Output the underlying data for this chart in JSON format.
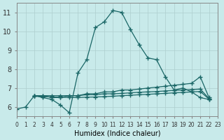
{
  "xlabel": "Humidex (Indice chaleur)",
  "bg_color": "#c8eaea",
  "grid_color": "#aecece",
  "line_color": "#1a6666",
  "xlim": [
    0,
    23
  ],
  "ylim": [
    5.5,
    11.5
  ],
  "xticks": [
    0,
    1,
    2,
    3,
    4,
    5,
    6,
    7,
    8,
    9,
    10,
    11,
    12,
    13,
    14,
    15,
    16,
    17,
    18,
    19,
    20,
    21,
    22,
    23
  ],
  "yticks": [
    6,
    7,
    8,
    9,
    10,
    11
  ],
  "series": [
    {
      "x": [
        0,
        1,
        2,
        3,
        4,
        5,
        6,
        7,
        8,
        9,
        10,
        11,
        12,
        13,
        14,
        15,
        16,
        17,
        18,
        19,
        20,
        21,
        22
      ],
      "y": [
        5.9,
        6.0,
        6.6,
        6.5,
        6.4,
        6.1,
        5.7,
        7.8,
        8.5,
        10.2,
        10.5,
        11.1,
        11.0,
        10.1,
        9.3,
        8.6,
        8.5,
        7.6,
        6.9,
        7.0,
        6.8,
        6.5,
        6.4
      ]
    },
    {
      "x": [
        2,
        3,
        4,
        5,
        6,
        7,
        8,
        9,
        10,
        11,
        12,
        13,
        14,
        15,
        16,
        17,
        18,
        19,
        20,
        21,
        22
      ],
      "y": [
        6.6,
        6.6,
        6.5,
        6.5,
        6.6,
        6.6,
        6.7,
        6.7,
        6.8,
        6.8,
        6.9,
        6.9,
        6.95,
        7.0,
        7.05,
        7.1,
        7.15,
        7.2,
        7.25,
        7.6,
        6.5
      ]
    },
    {
      "x": [
        2,
        3,
        4,
        5,
        6,
        7,
        8,
        9,
        10,
        11,
        12,
        13,
        14,
        15,
        16,
        17,
        18,
        19,
        20,
        21,
        22
      ],
      "y": [
        6.6,
        6.6,
        6.6,
        6.6,
        6.6,
        6.6,
        6.65,
        6.65,
        6.7,
        6.7,
        6.72,
        6.75,
        6.78,
        6.8,
        6.82,
        6.85,
        6.88,
        6.9,
        6.92,
        6.95,
        6.45
      ]
    },
    {
      "x": [
        2,
        3,
        4,
        5,
        6,
        7,
        8,
        9,
        10,
        11,
        12,
        13,
        14,
        15,
        16,
        17,
        18,
        19,
        20,
        21,
        22
      ],
      "y": [
        6.58,
        6.55,
        6.53,
        6.52,
        6.5,
        6.5,
        6.52,
        6.53,
        6.55,
        6.57,
        6.6,
        6.62,
        6.65,
        6.67,
        6.7,
        6.72,
        6.75,
        6.77,
        6.8,
        6.82,
        6.42
      ]
    }
  ]
}
